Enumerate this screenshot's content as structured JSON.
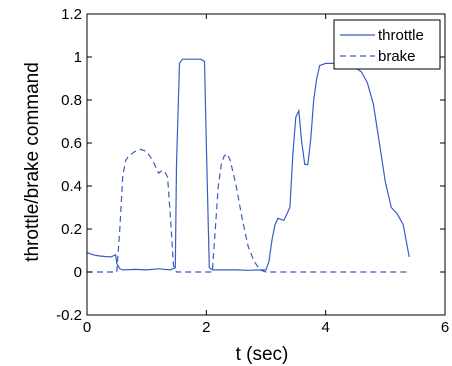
{
  "chart_data": {
    "type": "line",
    "title": "",
    "xlabel": "t (sec)",
    "ylabel": "throttle/brake command",
    "xlim": [
      0,
      6
    ],
    "ylim": [
      -0.2,
      1.2
    ],
    "xticks": [
      "0",
      "2",
      "4",
      "6"
    ],
    "yticks": [
      "-0.2",
      "0",
      "0.2",
      "0.4",
      "0.6",
      "0.8",
      "1",
      "1.2"
    ],
    "grid": false,
    "legend_position": "top-right",
    "series": [
      {
        "name": "throttle",
        "style": "solid",
        "color": "#3a5cc4",
        "x": [
          0,
          0.1,
          0.2,
          0.3,
          0.4,
          0.48,
          0.5,
          0.55,
          0.6,
          0.8,
          1.0,
          1.2,
          1.4,
          1.48,
          1.5,
          1.55,
          1.6,
          1.8,
          1.9,
          1.97,
          2.0,
          2.05,
          2.1,
          2.3,
          2.5,
          2.7,
          2.9,
          3.0,
          3.05,
          3.1,
          3.15,
          3.2,
          3.3,
          3.4,
          3.45,
          3.5,
          3.55,
          3.6,
          3.65,
          3.7,
          3.75,
          3.8,
          3.85,
          3.9,
          4.0,
          4.1,
          4.2,
          4.3,
          4.35,
          4.4,
          4.45,
          4.5,
          4.6,
          4.7,
          4.8,
          4.9,
          5.0,
          5.1,
          5.2,
          5.3,
          5.4
        ],
        "values": [
          0.09,
          0.08,
          0.075,
          0.072,
          0.07,
          0.08,
          0.04,
          0.015,
          0.01,
          0.012,
          0.01,
          0.015,
          0.01,
          0.02,
          0.5,
          0.97,
          0.99,
          0.99,
          0.99,
          0.98,
          0.6,
          0.02,
          0.01,
          0.01,
          0.01,
          0.008,
          0.01,
          0.01,
          0.05,
          0.15,
          0.22,
          0.25,
          0.24,
          0.3,
          0.55,
          0.72,
          0.75,
          0.6,
          0.5,
          0.5,
          0.62,
          0.8,
          0.9,
          0.96,
          0.97,
          0.97,
          0.97,
          0.97,
          0.96,
          0.98,
          0.98,
          0.95,
          0.93,
          0.88,
          0.78,
          0.6,
          0.42,
          0.3,
          0.27,
          0.22,
          0.07
        ]
      },
      {
        "name": "brake",
        "style": "dashed",
        "color": "#3a5cc4",
        "x": [
          0,
          0.2,
          0.4,
          0.5,
          0.55,
          0.6,
          0.65,
          0.7,
          0.8,
          0.9,
          1.0,
          1.1,
          1.15,
          1.2,
          1.25,
          1.3,
          1.35,
          1.4,
          1.45,
          1.5,
          1.6,
          2.0,
          2.1,
          2.15,
          2.2,
          2.25,
          2.3,
          2.35,
          2.4,
          2.5,
          2.6,
          2.7,
          2.8,
          2.9,
          3.0,
          4.0,
          5.0,
          5.4
        ],
        "values": [
          0,
          0,
          0,
          0,
          0.2,
          0.45,
          0.52,
          0.54,
          0.56,
          0.57,
          0.56,
          0.52,
          0.49,
          0.46,
          0.47,
          0.47,
          0.44,
          0.25,
          0.03,
          0,
          0,
          0,
          0,
          0.2,
          0.4,
          0.5,
          0.54,
          0.55,
          0.52,
          0.4,
          0.25,
          0.12,
          0.05,
          0.01,
          0,
          0,
          0,
          0
        ]
      }
    ]
  }
}
